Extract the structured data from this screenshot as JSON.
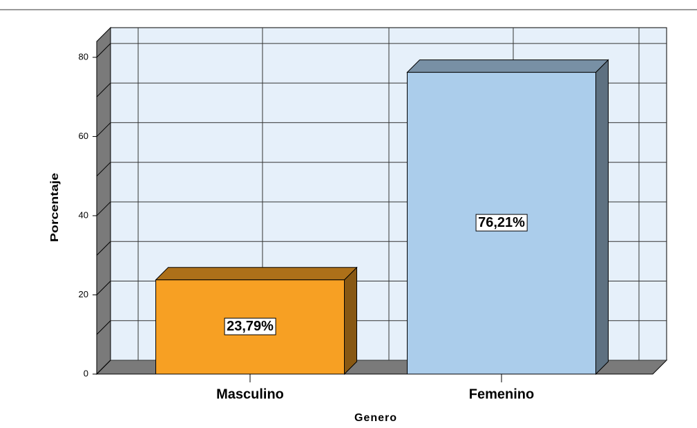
{
  "chart_data": {
    "type": "bar3d",
    "categories": [
      "Masculino",
      "Femenino"
    ],
    "values": [
      23.79,
      76.21
    ],
    "value_labels": [
      "23,79%",
      "76,21%"
    ],
    "colors": [
      "#f7a023",
      "#abcdeb"
    ],
    "ylabel": "Porcentaje",
    "xlabel": "Genero",
    "ylim": [
      0,
      84
    ],
    "yticks": [
      0,
      20,
      40,
      60,
      80
    ],
    "grid": true
  }
}
